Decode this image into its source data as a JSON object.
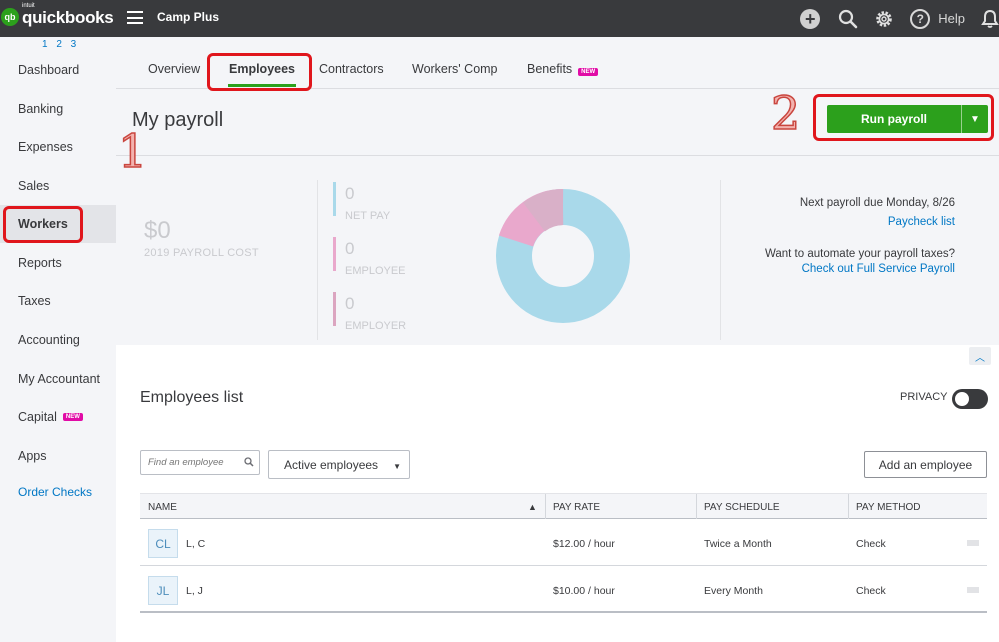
{
  "topbar": {
    "logo_badge": "qb",
    "logo_brand": "intuit",
    "logo_text": "quickbooks",
    "company": "Camp Plus",
    "help_label": "Help",
    "icons": [
      "plus-icon",
      "search-icon",
      "gear-icon",
      "help-icon",
      "bell-icon"
    ]
  },
  "sidebar": {
    "pager": "1 2 3",
    "items": [
      {
        "label": "Dashboard"
      },
      {
        "label": "Banking"
      },
      {
        "label": "Expenses"
      },
      {
        "label": "Sales"
      },
      {
        "label": "Workers"
      },
      {
        "label": "Reports"
      },
      {
        "label": "Taxes"
      },
      {
        "label": "Accounting"
      },
      {
        "label": "My Accountant"
      },
      {
        "label": "Capital",
        "badge": "NEW"
      },
      {
        "label": "Apps"
      },
      {
        "label": "Order Checks"
      }
    ]
  },
  "tabs": [
    {
      "label": "Overview"
    },
    {
      "label": "Employees"
    },
    {
      "label": "Contractors"
    },
    {
      "label": "Workers' Comp"
    },
    {
      "label": "Benefits",
      "badge": "NEW"
    }
  ],
  "page_title": "My payroll",
  "run_payroll_label": "Run payroll",
  "annotations": {
    "one": "1",
    "two": "2"
  },
  "summary": {
    "cost_value": "$0",
    "cost_label": "2019 PAYROLL COST",
    "metrics": [
      {
        "value": "0",
        "label": "NET PAY",
        "color": "#a9d9ea"
      },
      {
        "value": "0",
        "label": "EMPLOYEE",
        "color": "#e9a8cc"
      },
      {
        "value": "0",
        "label": "EMPLOYER",
        "color": "#dba5c0"
      }
    ],
    "donut_colors": [
      "#a9d9ea",
      "#e9a8cc",
      "#d9b0c8"
    ],
    "next_payroll": "Next payroll due Monday, 8/26",
    "paycheck_link": "Paycheck list",
    "automate_text": "Want to automate your payroll taxes?",
    "full_service_link": "Check out Full Service Payroll"
  },
  "employees": {
    "title": "Employees list",
    "privacy_label": "PRIVACY",
    "search_placeholder": "Find an employee",
    "filter_value": "Active employees",
    "add_label": "Add an employee",
    "columns": [
      "NAME",
      "PAY RATE",
      "PAY SCHEDULE",
      "PAY METHOD"
    ],
    "rows": [
      {
        "initials": "CL",
        "name": "L, C",
        "pay_rate": "$12.00 / hour",
        "schedule": "Twice a Month",
        "method": "Check"
      },
      {
        "initials": "JL",
        "name": "L, J",
        "pay_rate": "$10.00 / hour",
        "schedule": "Every Month",
        "method": "Check"
      }
    ]
  },
  "colors": {
    "accent_green": "#2ca01c",
    "link_blue": "#0077c5",
    "highlight_red": "#e0161c",
    "topbar": "#393a3d"
  }
}
